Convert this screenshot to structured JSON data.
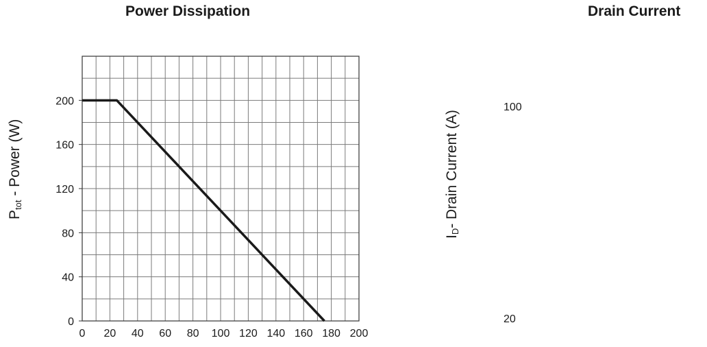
{
  "chart_data": [
    {
      "type": "line",
      "title": "Power Dissipation",
      "ylabel_main": "P",
      "ylabel_sub": "tot",
      "ylabel_rest": " - Power (W)",
      "xlabel": "",
      "xlim": [
        0,
        200
      ],
      "ylim": [
        0,
        240
      ],
      "xticks": [
        "0",
        "20",
        "40",
        "60",
        "80",
        "100",
        "120",
        "140",
        "160",
        "180",
        "200"
      ],
      "yticks": [
        "0",
        "40",
        "80",
        "120",
        "160",
        "200"
      ],
      "grid": true,
      "series": [
        {
          "x": [
            0,
            25,
            175
          ],
          "y": [
            200,
            200,
            0
          ]
        }
      ],
      "colors": {
        "line": "#1a1a1a",
        "grid": "#7a7a7a",
        "frame": "#333333"
      }
    },
    {
      "type": "line",
      "title": "Drain Current",
      "ylabel_main": "I",
      "ylabel_sub": "D",
      "ylabel_rest": "- Drain Current (A)",
      "yticks": [
        "100",
        "20"
      ]
    }
  ]
}
